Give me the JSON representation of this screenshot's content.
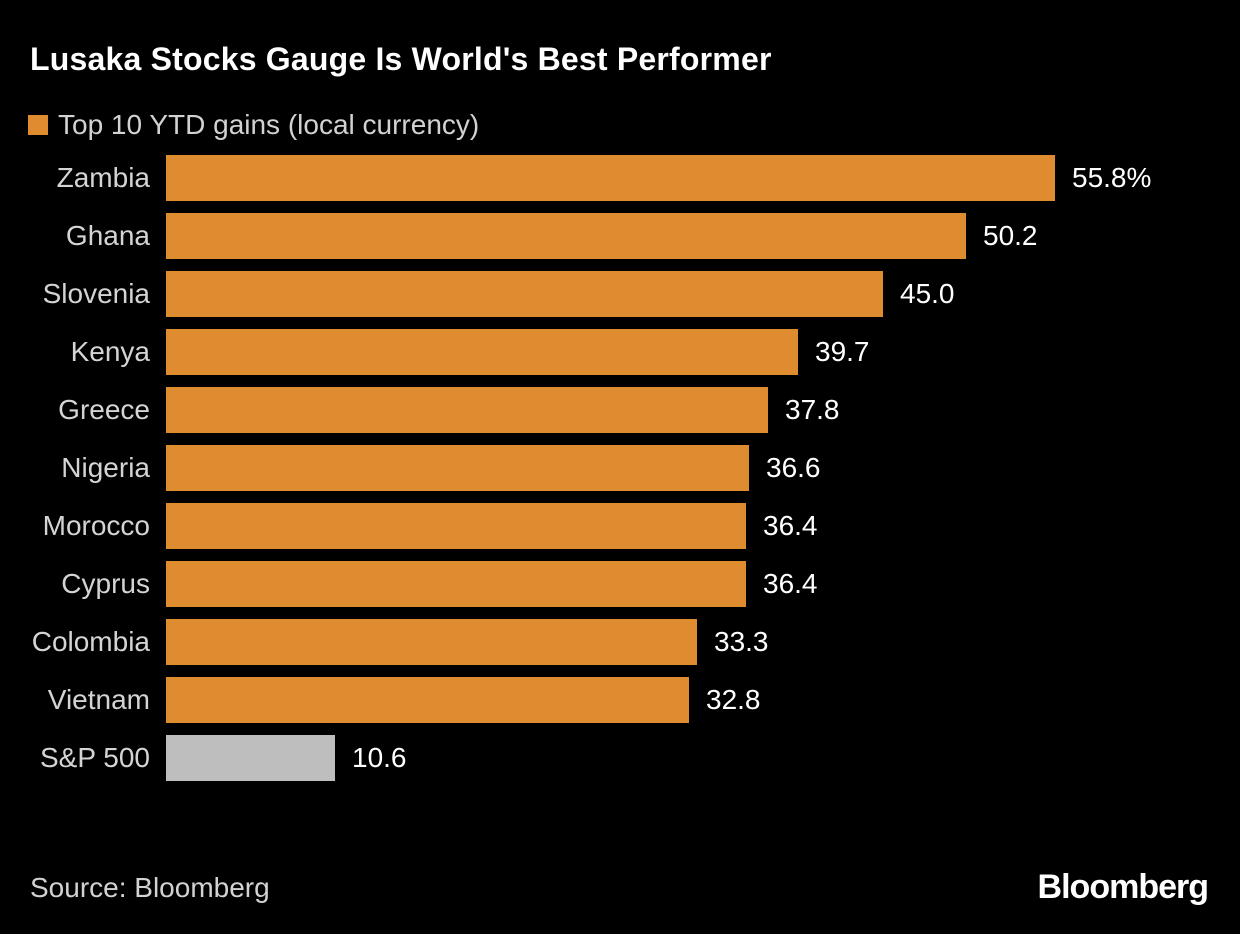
{
  "title": "Lusaka Stocks Gauge Is World's Best Performer",
  "legend": {
    "label": "Top 10 YTD gains (local currency)",
    "swatch_color": "#DE8C2F"
  },
  "source_text": "Source: Bloomberg",
  "logo_text": "Bloomberg",
  "colors": {
    "background": "#000000",
    "bar_orange": "#DE8C2F",
    "bar_gray": "#BEBEBE",
    "category_label": "#D4D4D4",
    "value_label": "#FFFFFF",
    "title": "#FFFFFF"
  },
  "chart_data": {
    "type": "bar",
    "orientation": "horizontal",
    "title": "Lusaka Stocks Gauge Is World's Best Performer",
    "legend_label": "Top 10 YTD gains (local currency)",
    "categories": [
      "Zambia",
      "Ghana",
      "Slovenia",
      "Kenya",
      "Greece",
      "Nigeria",
      "Morocco",
      "Cyprus",
      "Colombia",
      "Vietnam",
      "S&P 500"
    ],
    "values": [
      55.8,
      50.2,
      45.0,
      39.7,
      37.8,
      36.6,
      36.4,
      36.4,
      33.3,
      32.8,
      10.6
    ],
    "value_labels": [
      "55.8%",
      "50.2",
      "45.0",
      "39.7",
      "37.8",
      "36.6",
      "36.4",
      "36.4",
      "33.3",
      "32.8",
      "10.6"
    ],
    "benchmark_category": "S&P 500",
    "xlim": [
      0,
      55.8
    ],
    "grid": false,
    "legend_position": "top-left",
    "xlabel": "",
    "ylabel": ""
  }
}
